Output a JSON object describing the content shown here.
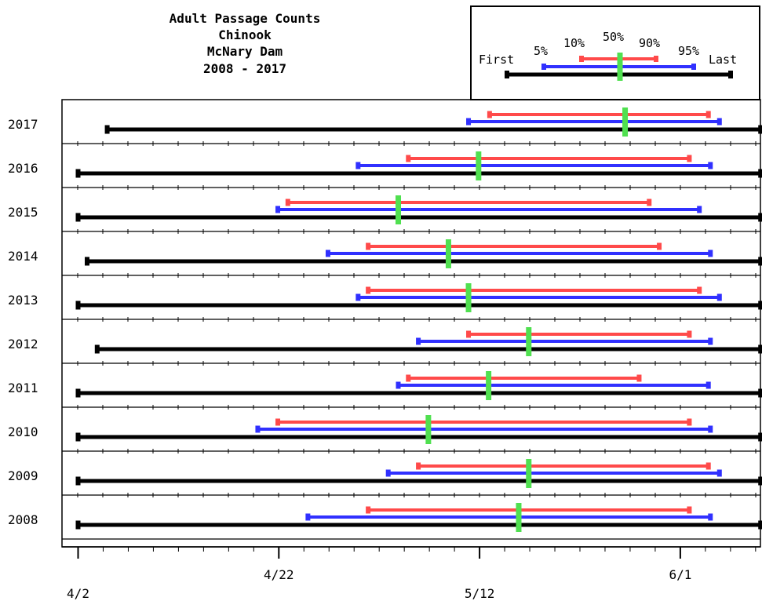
{
  "chart_data": {
    "type": "range",
    "title_lines": [
      "Adult Passage Counts",
      "Chinook",
      "McNary Dam",
      "2008 - 2017"
    ],
    "x_unit": "day of year",
    "x_ticks": [
      {
        "label": "4/2",
        "day": 92
      },
      {
        "label": "4/22",
        "day": 112
      },
      {
        "label": "5/12",
        "day": 132
      },
      {
        "label": "6/1",
        "day": 152
      }
    ],
    "xlim": [
      92,
      160
    ],
    "legend": {
      "labels": {
        "first": "First",
        "p5": "5%",
        "p10": "10%",
        "p50": "50%",
        "p90": "90%",
        "p95": "95%",
        "last": "Last"
      },
      "position": "top-right"
    },
    "colors": {
      "first_last": "#000000",
      "p5_p95": "#3030ff",
      "p10_p90": "#ff4a4a",
      "median": "#50e050"
    },
    "years": [
      {
        "year": "2017",
        "first": 94.9,
        "p5": 130.9,
        "p10": 133.0,
        "p50": 146.5,
        "p90": 154.8,
        "p95": 155.9,
        "last": 160
      },
      {
        "year": "2016",
        "first": 92,
        "p5": 119.9,
        "p10": 124.9,
        "p50": 131.9,
        "p90": 152.9,
        "p95": 155.0,
        "last": 160
      },
      {
        "year": "2015",
        "first": 92,
        "p5": 111.9,
        "p10": 112.9,
        "p50": 123.9,
        "p90": 148.9,
        "p95": 153.9,
        "last": 160
      },
      {
        "year": "2014",
        "first": 92.9,
        "p5": 116.9,
        "p10": 120.9,
        "p50": 128.9,
        "p90": 149.9,
        "p95": 155.0,
        "last": 160
      },
      {
        "year": "2013",
        "first": 92,
        "p5": 119.9,
        "p10": 120.9,
        "p50": 130.9,
        "p90": 153.9,
        "p95": 155.9,
        "last": 160
      },
      {
        "year": "2012",
        "first": 93.9,
        "p5": 125.9,
        "p10": 130.9,
        "p50": 136.9,
        "p90": 152.9,
        "p95": 155.0,
        "last": 160
      },
      {
        "year": "2011",
        "first": 92,
        "p5": 123.9,
        "p10": 124.9,
        "p50": 132.9,
        "p90": 147.9,
        "p95": 154.8,
        "last": 160
      },
      {
        "year": "2010",
        "first": 92,
        "p5": 109.9,
        "p10": 111.9,
        "p50": 126.9,
        "p90": 152.9,
        "p95": 155.0,
        "last": 160
      },
      {
        "year": "2009",
        "first": 92,
        "p5": 122.9,
        "p10": 125.9,
        "p50": 136.9,
        "p90": 154.8,
        "p95": 155.9,
        "last": 160
      },
      {
        "year": "2008",
        "first": 92,
        "p5": 114.9,
        "p10": 120.9,
        "p50": 135.9,
        "p90": 152.9,
        "p95": 155.0,
        "last": 160
      }
    ]
  }
}
